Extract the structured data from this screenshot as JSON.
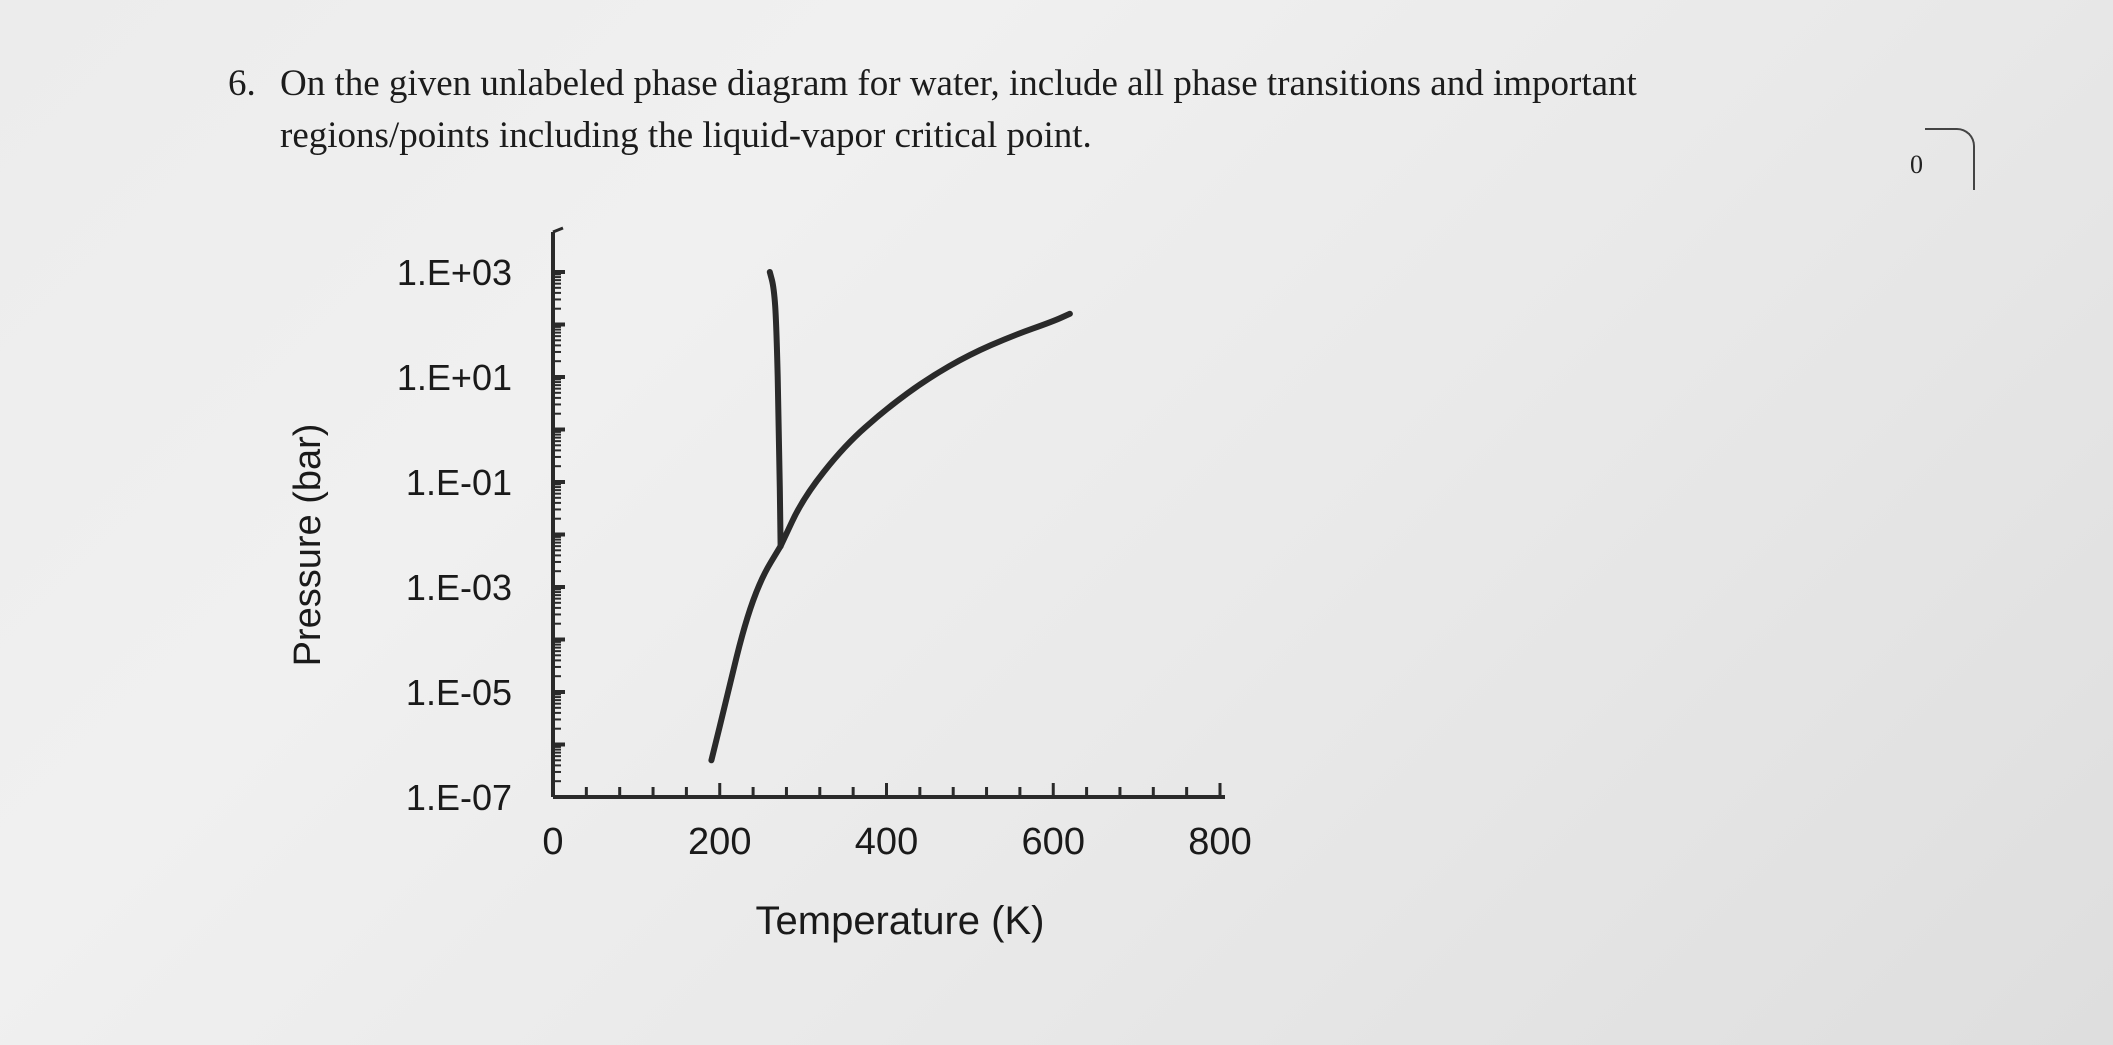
{
  "question": {
    "number": "6.",
    "line1": "On the given unlabeled phase diagram for water, include all phase transitions and important",
    "line2": "regions/points including the liquid-vapor critical point.",
    "mark": "0"
  },
  "chart_data": {
    "type": "line",
    "title": "",
    "xlabel": "Temperature (K)",
    "ylabel": "Pressure (bar)",
    "x_ticks": [
      "0",
      "200",
      "400",
      "600",
      "800"
    ],
    "y_ticks": [
      "1.E-07",
      "1.E-05",
      "1.E-03",
      "1.E-01",
      "1.E+01",
      "1.E+03"
    ],
    "xlim": [
      0,
      800
    ],
    "ylim": [
      1e-07,
      1000
    ],
    "y_scale": "log",
    "grid": false,
    "line_color": "#2a2a2a",
    "series": [
      {
        "x": [
          190,
          210,
          230,
          250,
          273
        ],
        "y": [
          5e-07,
          1e-05,
          0.0002,
          0.0015,
          0.006
        ]
      },
      {
        "x": [
          273,
          271,
          268,
          265,
          260
        ],
        "y": [
          0.006,
          1,
          100,
          500,
          1000
        ]
      },
      {
        "x": [
          273,
          300,
          350,
          400,
          450,
          500,
          550,
          600,
          620
        ],
        "y": [
          0.006,
          0.05,
          0.5,
          2.5,
          9.5,
          27,
          60,
          115,
          160
        ]
      }
    ]
  }
}
